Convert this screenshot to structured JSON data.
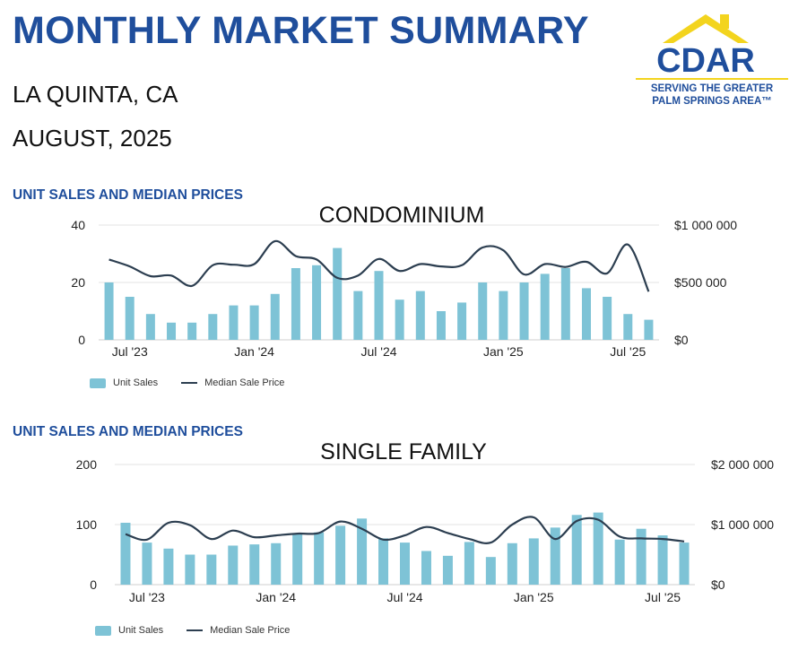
{
  "header": {
    "title": "MONTHLY MARKET SUMMARY",
    "location": "LA QUINTA, CA",
    "period": "AUGUST, 2025"
  },
  "logo": {
    "text": "CDAR",
    "tagline_line1": "SERVING THE GREATER",
    "tagline_line2": "PALM SPRINGS AREA™",
    "colors": {
      "roof": "#f3d41e",
      "text": "#1f4e9c"
    }
  },
  "colors": {
    "bar": "#7ec3d6",
    "line": "#2c3e50",
    "grid": "#e3e3e3",
    "heading": "#1f4e9c"
  },
  "chart_data": [
    {
      "type": "bar",
      "section_title": "UNIT SALES AND MEDIAN PRICES",
      "title": "CONDOMINIUM",
      "months": [
        "2023-06",
        "2023-07",
        "2023-08",
        "2023-09",
        "2023-10",
        "2023-11",
        "2023-12",
        "2024-01",
        "2024-02",
        "2024-03",
        "2024-04",
        "2024-05",
        "2024-06",
        "2024-07",
        "2024-08",
        "2024-09",
        "2024-10",
        "2024-11",
        "2024-12",
        "2025-01",
        "2025-02",
        "2025-03",
        "2025-04",
        "2025-05",
        "2025-06",
        "2025-07",
        "2025-08"
      ],
      "x_tick_labels": [
        "Jul '23",
        "Jan '24",
        "Jul '24",
        "Jan '25",
        "Jul '25"
      ],
      "y_left_ticks": [
        "0",
        "20",
        "40"
      ],
      "y_right_ticks": [
        "$0",
        "$500 000",
        "$1 000 000"
      ],
      "ylim_left": [
        0,
        40
      ],
      "ylim_right": [
        0,
        1000000
      ],
      "series": [
        {
          "name": "Unit Sales",
          "type": "bar",
          "axis": "left",
          "values": [
            20,
            15,
            9,
            6,
            6,
            9,
            12,
            12,
            16,
            25,
            26,
            32,
            17,
            24,
            14,
            17,
            10,
            13,
            20,
            17,
            20,
            23,
            25,
            18,
            15,
            9,
            7
          ]
        },
        {
          "name": "Median Sale Price",
          "type": "line",
          "axis": "right",
          "values": [
            700000,
            640000,
            555000,
            560000,
            470000,
            650000,
            655000,
            660000,
            860000,
            730000,
            700000,
            540000,
            560000,
            705000,
            600000,
            660000,
            640000,
            650000,
            805000,
            780000,
            570000,
            660000,
            635000,
            680000,
            580000,
            830000,
            420000
          ]
        }
      ],
      "legend": [
        "Unit Sales",
        "Median Sale Price"
      ]
    },
    {
      "type": "bar",
      "section_title": "UNIT SALES AND MEDIAN PRICES",
      "title": "SINGLE FAMILY",
      "months": [
        "2023-06",
        "2023-07",
        "2023-08",
        "2023-09",
        "2023-10",
        "2023-11",
        "2023-12",
        "2024-01",
        "2024-02",
        "2024-03",
        "2024-04",
        "2024-05",
        "2024-06",
        "2024-07",
        "2024-08",
        "2024-09",
        "2024-10",
        "2024-11",
        "2024-12",
        "2025-01",
        "2025-02",
        "2025-03",
        "2025-04",
        "2025-05",
        "2025-06",
        "2025-07",
        "2025-08"
      ],
      "x_tick_labels": [
        "Jul '23",
        "Jan '24",
        "Jul '24",
        "Jan '25",
        "Jul '25"
      ],
      "y_left_ticks": [
        "0",
        "100",
        "200"
      ],
      "y_right_ticks": [
        "$0",
        "$1 000 000",
        "$2 000 000"
      ],
      "ylim_left": [
        0,
        200
      ],
      "ylim_right": [
        0,
        2000000
      ],
      "series": [
        {
          "name": "Unit Sales",
          "type": "bar",
          "axis": "left",
          "values": [
            103,
            70,
            60,
            50,
            50,
            65,
            67,
            69,
            85,
            87,
            98,
            110,
            77,
            70,
            56,
            48,
            71,
            46,
            69,
            77,
            95,
            116,
            120,
            75,
            93,
            82,
            70
          ]
        },
        {
          "name": "Median Sale Price",
          "type": "line",
          "axis": "right",
          "values": [
            840000,
            750000,
            1030000,
            990000,
            760000,
            900000,
            790000,
            820000,
            850000,
            860000,
            1050000,
            930000,
            750000,
            820000,
            960000,
            860000,
            760000,
            700000,
            1000000,
            1120000,
            760000,
            1060000,
            1080000,
            800000,
            770000,
            760000,
            720000
          ]
        }
      ],
      "legend": [
        "Unit Sales",
        "Median Sale Price"
      ]
    }
  ]
}
